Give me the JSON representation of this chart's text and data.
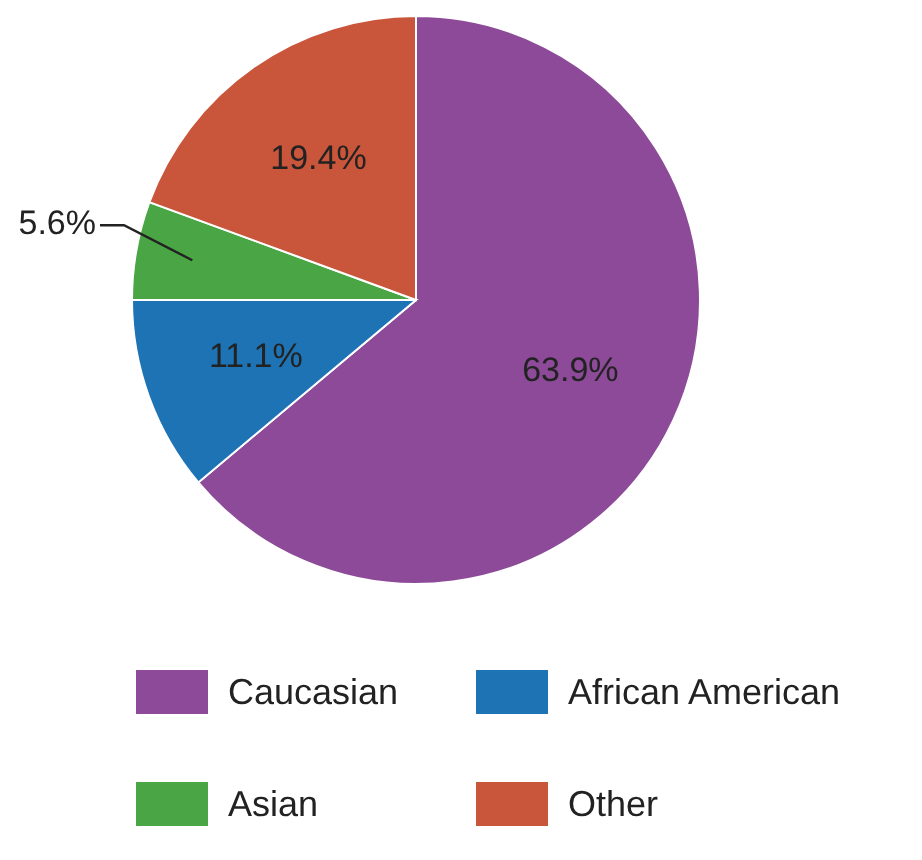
{
  "chart_data": {
    "type": "pie",
    "categories": [
      "Caucasian",
      "African American",
      "Asian",
      "Other"
    ],
    "values": [
      63.9,
      11.1,
      5.6,
      19.4
    ],
    "colors": [
      "#8c4a99",
      "#1e73b5",
      "#4aa645",
      "#c9553a"
    ],
    "value_labels": [
      "63.9%",
      "11.1%",
      "5.6%",
      "19.4%"
    ],
    "legend": "bottom"
  }
}
